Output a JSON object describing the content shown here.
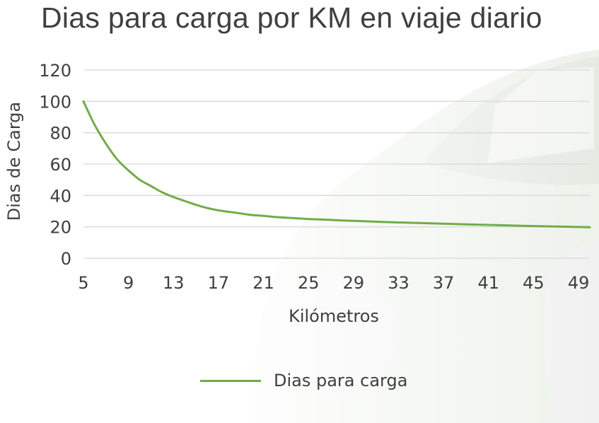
{
  "colors": {
    "series": "#70ad47",
    "grid": "#d9d9d9",
    "text": "#3f3f3f"
  },
  "chart_data": {
    "type": "line",
    "title": "Dias para carga por KM en viaje diario",
    "xlabel": "Kilómetros",
    "ylabel": "Dias de Carga",
    "x": [
      5,
      9,
      13,
      17,
      21,
      25,
      29,
      33,
      37,
      41,
      45,
      49
    ],
    "xlim": [
      5,
      50
    ],
    "ylim": [
      0,
      120
    ],
    "yticks": [
      0,
      20,
      40,
      60,
      80,
      100,
      120
    ],
    "grid": true,
    "legend": "bottom",
    "background_image": "grass-covered-car-photo",
    "series": [
      {
        "name": "Dias para carga",
        "points": [
          [
            5,
            100
          ],
          [
            6,
            85
          ],
          [
            7,
            73
          ],
          [
            8,
            63
          ],
          [
            9,
            56
          ],
          [
            10,
            50
          ],
          [
            11,
            46
          ],
          [
            12,
            42
          ],
          [
            13,
            39
          ],
          [
            14,
            36.5
          ],
          [
            15,
            34
          ],
          [
            16,
            32
          ],
          [
            17,
            30.5
          ],
          [
            18,
            29.5
          ],
          [
            19,
            28.5
          ],
          [
            20,
            27.5
          ],
          [
            21,
            27
          ],
          [
            22,
            26.3
          ],
          [
            23,
            25.8
          ],
          [
            25,
            25
          ],
          [
            27,
            24.4
          ],
          [
            29,
            23.8
          ],
          [
            33,
            22.8
          ],
          [
            37,
            22
          ],
          [
            41,
            21.2
          ],
          [
            45,
            20.5
          ],
          [
            50,
            19.7
          ]
        ]
      }
    ]
  }
}
